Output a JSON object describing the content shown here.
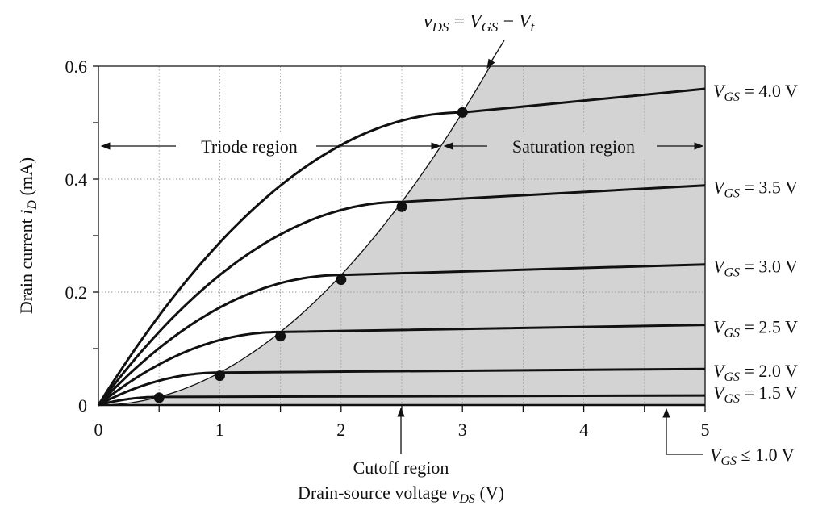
{
  "chart_data": {
    "type": "line",
    "title": "",
    "xlabel": "Drain-source voltage v_DS (V)",
    "ylabel": "Drain current i_D (mA)",
    "xlim": [
      0,
      5
    ],
    "ylim": [
      0,
      0.6
    ],
    "x_ticks": [
      "0",
      "1",
      "2",
      "3",
      "4",
      "5"
    ],
    "y_ticks": [
      "0",
      "0.2",
      "0.4",
      "0.6"
    ],
    "grid": true,
    "threshold_voltage_Vt": 1.0,
    "boundary_curve_label": "v_DS = V_GS − V_t",
    "series": [
      {
        "name": "V_GS = 1.5 V",
        "vov": 0.5,
        "sat_current": 0.013,
        "end_current": 0.017
      },
      {
        "name": "V_GS = 2.0 V",
        "vov": 1.0,
        "sat_current": 0.052,
        "end_current": 0.064
      },
      {
        "name": "V_GS = 2.5 V",
        "vov": 1.5,
        "sat_current": 0.122,
        "end_current": 0.142
      },
      {
        "name": "V_GS = 3.0 V",
        "vov": 2.0,
        "sat_current": 0.222,
        "end_current": 0.249
      },
      {
        "name": "V_GS = 3.5 V",
        "vov": 2.5,
        "sat_current": 0.351,
        "end_current": 0.389
      },
      {
        "name": "V_GS = 4.0 V",
        "vov": 3.0,
        "sat_current": 0.518,
        "end_current": 0.56
      }
    ],
    "annotations": {
      "triode": "Triode region",
      "saturation": "Saturation region",
      "cutoff": "Cutoff region",
      "cutoff_vgs": "V_GS ≤ 1.0 V"
    }
  }
}
